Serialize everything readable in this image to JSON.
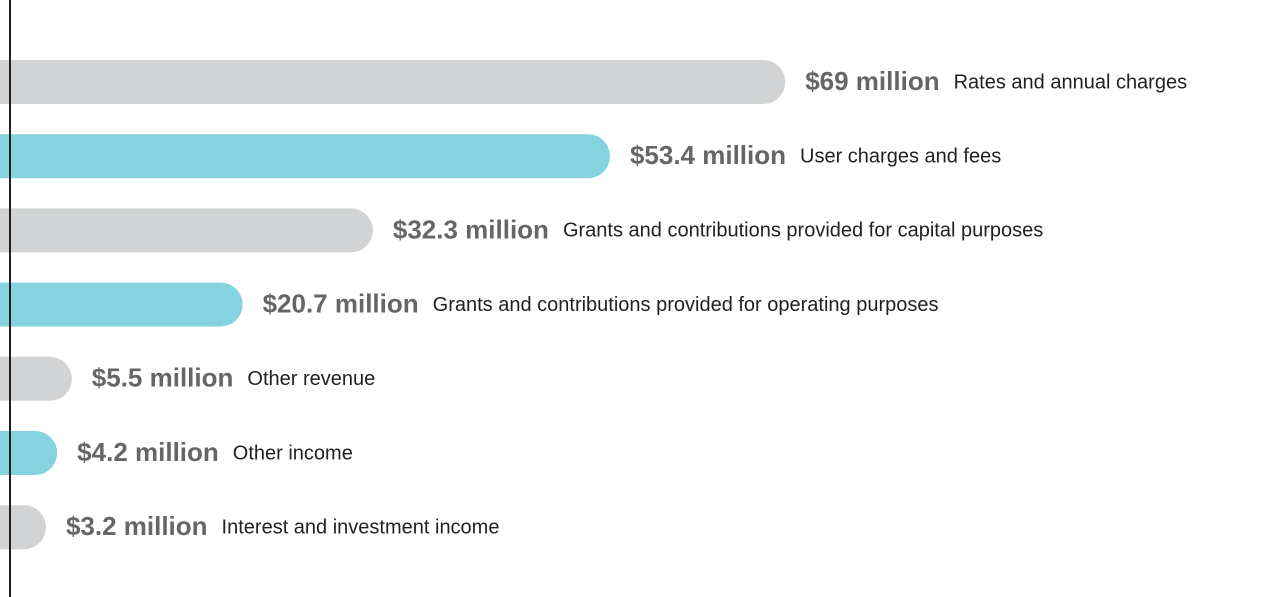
{
  "chart_data": {
    "type": "bar",
    "categories": [
      "Rates and annual charges",
      "User charges and fees",
      "Grants and contributions provided for capital purposes",
      "Grants and contributions provided for operating purposes",
      "Other revenue",
      "Other income",
      "Interest and investment income"
    ],
    "values": [
      69,
      53.4,
      32.3,
      20.7,
      5.5,
      4.2,
      3.2
    ],
    "value_labels": [
      "$69 million",
      "$53.4 million",
      "$32.3 million",
      "$20.7 million",
      "$5.5 million",
      "$4.2 million",
      "$3.2 million"
    ],
    "colors": [
      "#d1d3d4",
      "#86d3e0",
      "#d1d3d4",
      "#86d3e0",
      "#d1d3d4",
      "#86d3e0",
      "#d1d3d4"
    ]
  }
}
